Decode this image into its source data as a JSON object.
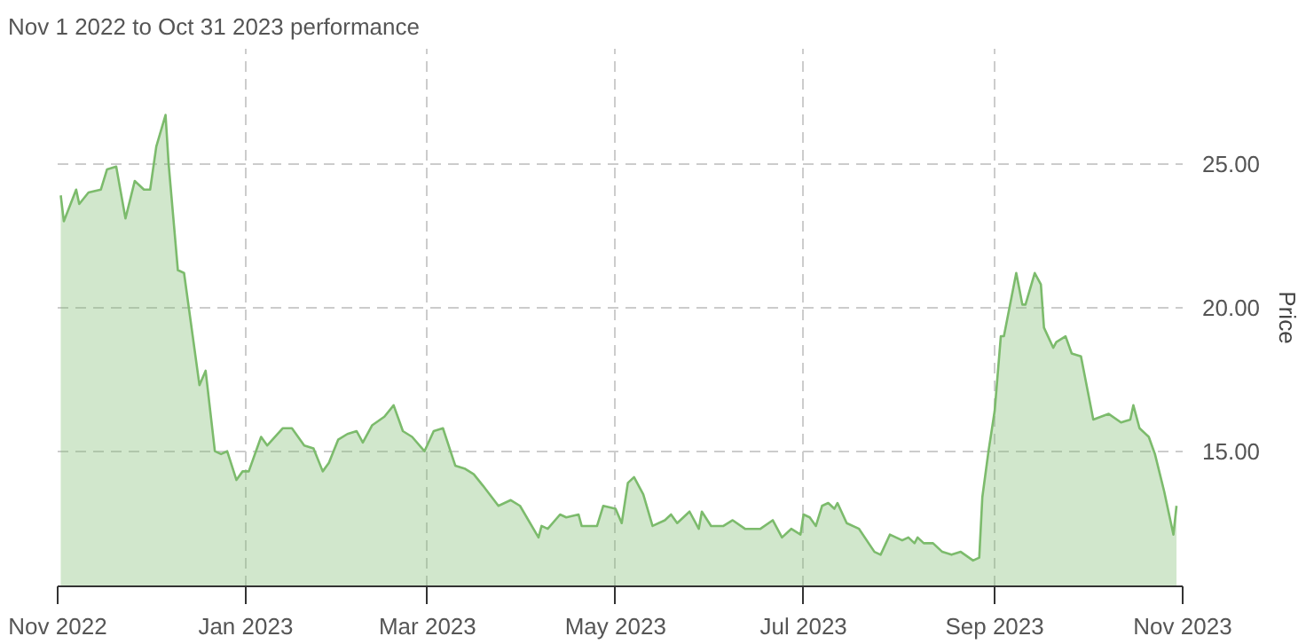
{
  "chart_data": {
    "type": "area",
    "title": "Nov 1 2022 to Oct 31 2023 performance",
    "ylabel": "Price",
    "x": [
      "2022-11-02",
      "2022-11-03",
      "2022-11-07",
      "2022-11-08",
      "2022-11-11",
      "2022-11-15",
      "2022-11-17",
      "2022-11-20",
      "2022-11-23",
      "2022-11-26",
      "2022-11-29",
      "2022-12-01",
      "2022-12-03",
      "2022-12-06",
      "2022-12-07",
      "2022-12-10",
      "2022-12-12",
      "2022-12-17",
      "2022-12-19",
      "2022-12-22",
      "2022-12-24",
      "2022-12-26",
      "2022-12-29",
      "2022-12-31",
      "2023-01-02",
      "2023-01-06",
      "2023-01-08",
      "2023-01-13",
      "2023-01-16",
      "2023-01-20",
      "2023-01-23",
      "2023-01-26",
      "2023-01-28",
      "2023-01-31",
      "2023-02-03",
      "2023-02-06",
      "2023-02-08",
      "2023-02-11",
      "2023-02-15",
      "2023-02-18",
      "2023-02-21",
      "2023-02-24",
      "2023-02-28",
      "2023-03-03",
      "2023-03-06",
      "2023-03-10",
      "2023-03-13",
      "2023-03-16",
      "2023-03-19",
      "2023-03-24",
      "2023-03-28",
      "2023-03-31",
      "2023-04-06",
      "2023-04-07",
      "2023-04-09",
      "2023-04-13",
      "2023-04-15",
      "2023-04-19",
      "2023-04-20",
      "2023-04-23",
      "2023-04-25",
      "2023-04-27",
      "2023-05-01",
      "2023-05-03",
      "2023-05-05",
      "2023-05-07",
      "2023-05-10",
      "2023-05-13",
      "2023-05-17",
      "2023-05-19",
      "2023-05-21",
      "2023-05-25",
      "2023-05-28",
      "2023-05-29",
      "2023-06-01",
      "2023-06-05",
      "2023-06-08",
      "2023-06-12",
      "2023-06-17",
      "2023-06-21",
      "2023-06-24",
      "2023-06-27",
      "2023-06-30",
      "2023-07-01",
      "2023-07-03",
      "2023-07-05",
      "2023-07-07",
      "2023-07-09",
      "2023-07-11",
      "2023-07-12",
      "2023-07-15",
      "2023-07-19",
      "2023-07-24",
      "2023-07-26",
      "2023-07-29",
      "2023-08-02",
      "2023-08-04",
      "2023-08-06",
      "2023-08-07",
      "2023-08-09",
      "2023-08-12",
      "2023-08-15",
      "2023-08-18",
      "2023-08-21",
      "2023-08-25",
      "2023-08-27",
      "2023-08-28",
      "2023-08-30",
      "2023-09-01",
      "2023-09-03",
      "2023-09-04",
      "2023-09-08",
      "2023-09-10",
      "2023-09-11",
      "2023-09-14",
      "2023-09-16",
      "2023-09-17",
      "2023-09-20",
      "2023-09-21",
      "2023-09-24",
      "2023-09-26",
      "2023-09-29",
      "2023-10-03",
      "2023-10-08",
      "2023-10-12",
      "2023-10-15",
      "2023-10-16",
      "2023-10-18",
      "2023-10-21",
      "2023-10-23",
      "2023-10-26",
      "2023-10-29",
      "2023-10-30"
    ],
    "series": [
      {
        "color": "#7cbb6c",
        "values": [
          23.9,
          23.0,
          24.1,
          23.6,
          24.0,
          24.1,
          24.8,
          24.9,
          23.1,
          24.4,
          24.1,
          24.1,
          25.6,
          26.7,
          25.0,
          21.3,
          21.2,
          17.3,
          17.8,
          15.0,
          14.9,
          15.0,
          14.0,
          14.3,
          14.3,
          15.5,
          15.2,
          15.8,
          15.8,
          15.2,
          15.1,
          14.3,
          14.6,
          15.4,
          15.6,
          15.7,
          15.3,
          15.9,
          16.2,
          16.6,
          15.7,
          15.5,
          15.0,
          15.7,
          15.8,
          14.5,
          14.4,
          14.2,
          13.8,
          13.1,
          13.3,
          13.1,
          12.0,
          12.4,
          12.3,
          12.8,
          12.7,
          12.8,
          12.4,
          12.4,
          12.4,
          13.1,
          13.0,
          12.5,
          13.9,
          14.1,
          13.5,
          12.4,
          12.6,
          12.8,
          12.5,
          12.9,
          12.3,
          12.9,
          12.4,
          12.4,
          12.6,
          12.3,
          12.3,
          12.6,
          12.0,
          12.3,
          12.1,
          12.8,
          12.7,
          12.4,
          13.1,
          13.2,
          13.0,
          13.2,
          12.5,
          12.3,
          11.5,
          11.4,
          12.1,
          11.9,
          12.0,
          11.8,
          12.0,
          11.8,
          11.8,
          11.5,
          11.4,
          11.5,
          11.2,
          11.3,
          13.4,
          15.0,
          16.4,
          19.0,
          19.0,
          21.2,
          20.1,
          20.1,
          21.2,
          20.8,
          19.3,
          18.6,
          18.8,
          19.0,
          18.4,
          18.3,
          16.1,
          16.3,
          16.0,
          16.1,
          16.6,
          15.8,
          15.5,
          14.9,
          13.6,
          12.1,
          13.1
        ]
      }
    ],
    "xlim": [
      "2022-11-01",
      "2023-11-01"
    ],
    "xticks": [
      {
        "value": "2022-11-01",
        "label": "Nov 2022"
      },
      {
        "value": "2023-01-01",
        "label": "Jan 2023"
      },
      {
        "value": "2023-03-01",
        "label": "Mar 2023"
      },
      {
        "value": "2023-05-01",
        "label": "May 2023"
      },
      {
        "value": "2023-07-01",
        "label": "Jul 2023"
      },
      {
        "value": "2023-09-01",
        "label": "Sep 2023"
      },
      {
        "value": "2023-11-01",
        "label": "Nov 2023"
      }
    ],
    "ylim": [
      10.3,
      29
    ],
    "yticks": [
      {
        "value": 15,
        "label": "15.00"
      },
      {
        "value": 20,
        "label": "20.00"
      },
      {
        "value": 25,
        "label": "25.00"
      }
    ],
    "grid": true,
    "line_style": "solid"
  }
}
